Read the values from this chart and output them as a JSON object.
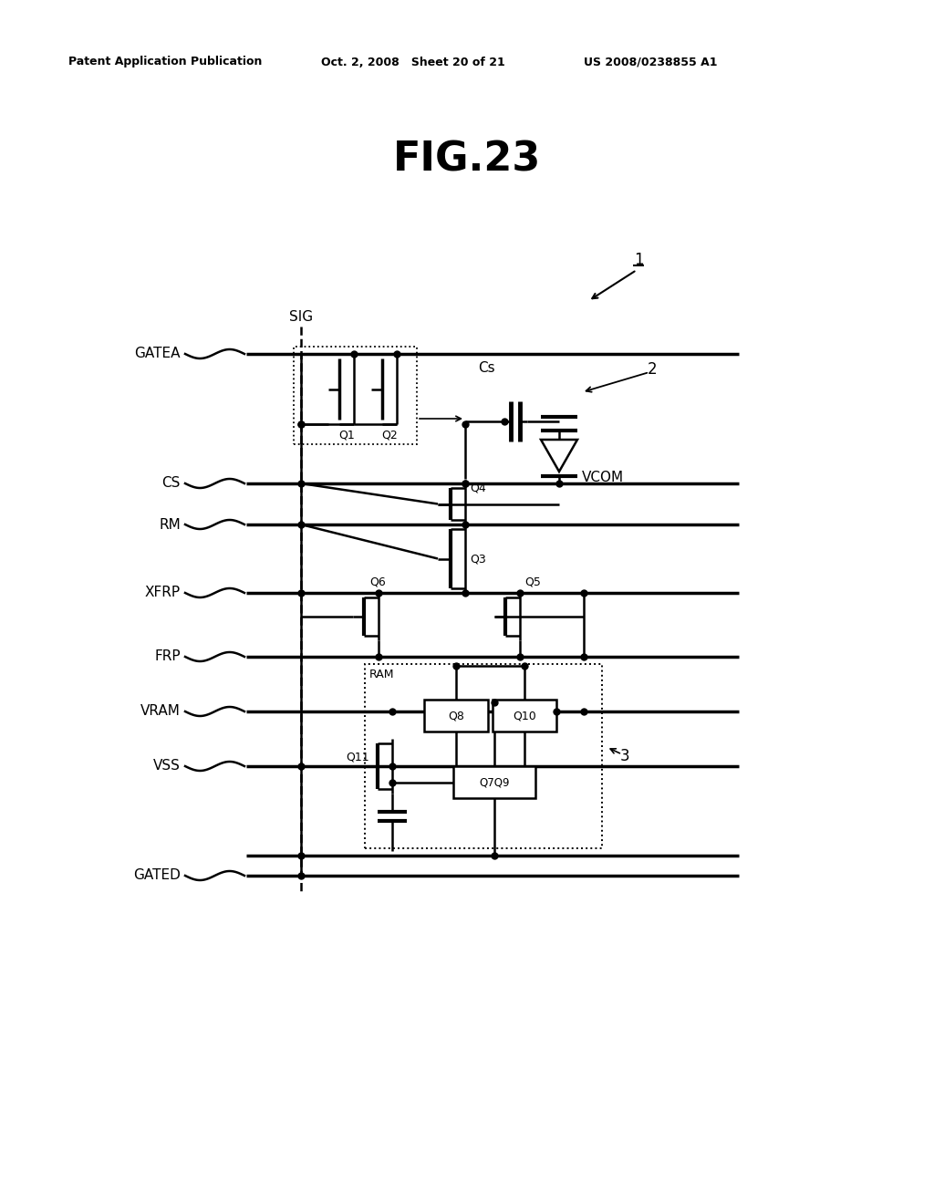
{
  "title": "FIG.23",
  "header_left": "Patent Application Publication",
  "header_center": "Oct. 2, 2008   Sheet 20 of 21",
  "header_right": "US 2008/0238855 A1",
  "bg_color": "#ffffff",
  "fig_w": 10.24,
  "fig_h": 13.2,
  "dpi": 100
}
